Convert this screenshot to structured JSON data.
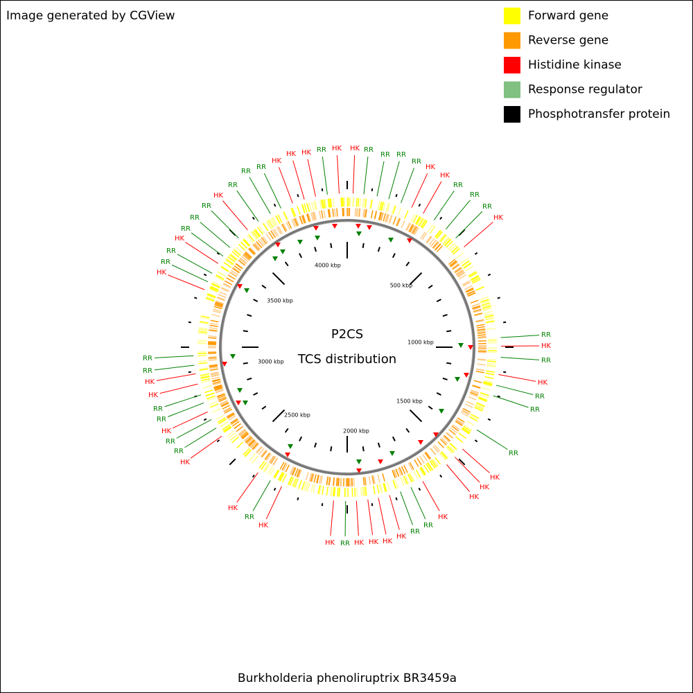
{
  "header": {
    "title": "Image generated by CGView"
  },
  "legend": {
    "items": [
      {
        "name": "Forward gene",
        "color": "#ffff00"
      },
      {
        "name": "Reverse gene",
        "color": "#ff9900"
      },
      {
        "name": "Histidine kinase",
        "color": "#ff0000"
      },
      {
        "name": "Response regulator",
        "color": "#80c080"
      },
      {
        "name": "Phosphotransfer protein",
        "color": "#000000"
      }
    ]
  },
  "map": {
    "title": "P2CS",
    "subtitle": "TCS distribution",
    "scale_labels": [
      "500 kbp",
      "1000 kbp",
      "1500 kbp",
      "2000 kbp",
      "2500 kbp",
      "3000 kbp",
      "3500 kbp",
      "4000 kbp"
    ],
    "feature_labels": [
      "HK",
      "RR",
      "RR",
      "RR",
      "RR",
      "HK",
      "HK",
      "RR",
      "RR",
      "RR",
      "HK",
      "RR",
      "HK",
      "RR",
      "HK",
      "RR",
      "RR",
      "RR",
      "HK",
      "HK",
      "HK",
      "HK",
      "RR",
      "RR",
      "HK",
      "HK",
      "HK",
      "HK",
      "RR",
      "HK",
      "HK",
      "RR",
      "HK",
      "HK",
      "RR",
      "RR",
      "HK",
      "RR",
      "RR",
      "HK",
      "HK",
      "RR",
      "RR",
      "HK",
      "RR",
      "RR",
      "HK",
      "RR",
      "RR",
      "RR",
      "HK",
      "RR",
      "RR",
      "RR",
      "HK",
      "HK",
      "HK",
      "RR",
      "HK"
    ]
  },
  "footer": {
    "organism": "Burkholderia phenoliruptrix BR3459a"
  }
}
